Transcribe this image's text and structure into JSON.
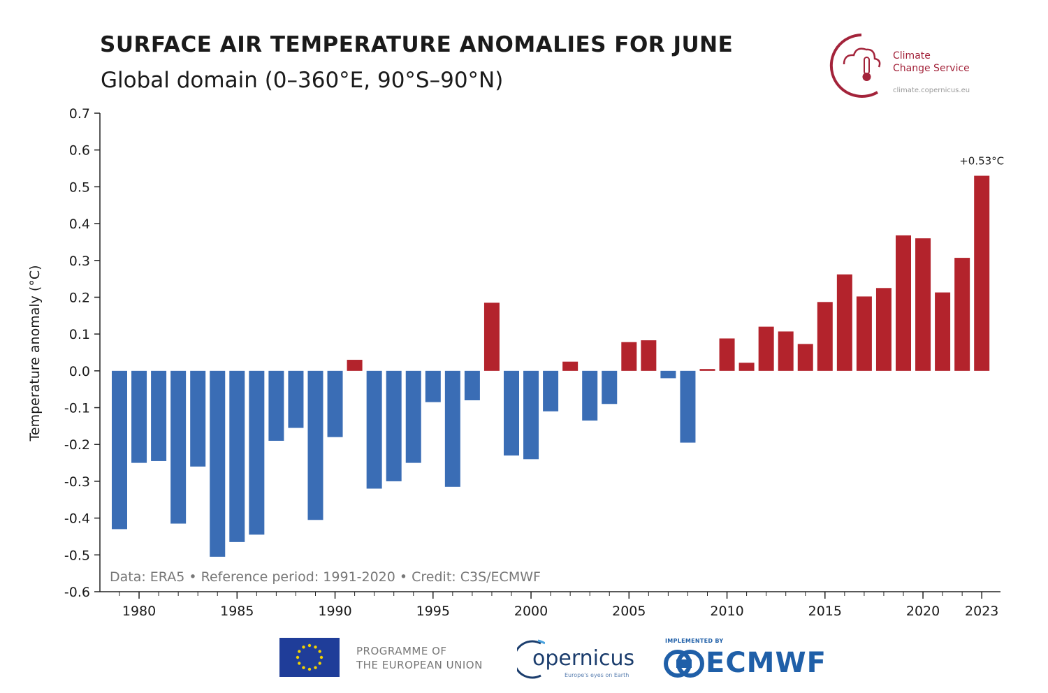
{
  "chart_data": {
    "type": "bar",
    "title": "SURFACE AIR TEMPERATURE ANOMALIES FOR JUNE",
    "subtitle": "Global domain (0–360°E, 90°S–90°N)",
    "ylabel": "Temperature anomaly (°C)",
    "xlabel": "",
    "ylim": [
      -0.6,
      0.7
    ],
    "yticks": [
      "0.7",
      "0.6",
      "0.5",
      "0.4",
      "0.3",
      "0.2",
      "0.1",
      "0.0",
      "-0.1",
      "-0.2",
      "-0.3",
      "-0.4",
      "-0.5",
      "-0.6"
    ],
    "xticks": [
      "1980",
      "1985",
      "1990",
      "1995",
      "2000",
      "2005",
      "2010",
      "2015",
      "2020",
      "2023"
    ],
    "x": [
      1979,
      1980,
      1981,
      1982,
      1983,
      1984,
      1985,
      1986,
      1987,
      1988,
      1989,
      1990,
      1991,
      1992,
      1993,
      1994,
      1995,
      1996,
      1997,
      1998,
      1999,
      2000,
      2001,
      2002,
      2003,
      2004,
      2005,
      2006,
      2007,
      2008,
      2009,
      2010,
      2011,
      2012,
      2013,
      2014,
      2015,
      2016,
      2017,
      2018,
      2019,
      2020,
      2021,
      2022,
      2023
    ],
    "values": [
      -0.43,
      -0.25,
      -0.245,
      -0.415,
      -0.26,
      -0.505,
      -0.465,
      -0.445,
      -0.19,
      -0.155,
      -0.405,
      -0.18,
      0.03,
      -0.32,
      -0.3,
      -0.25,
      -0.085,
      -0.315,
      -0.08,
      0.185,
      -0.23,
      -0.24,
      -0.11,
      0.025,
      -0.135,
      -0.09,
      0.078,
      0.083,
      -0.02,
      -0.195,
      0.005,
      0.088,
      0.022,
      0.12,
      0.107,
      0.073,
      0.187,
      0.262,
      0.202,
      0.225,
      0.368,
      0.36,
      0.213,
      0.307,
      0.53
    ],
    "positive_color": "#b3232c",
    "negative_color": "#3a6db5",
    "annotation": "+0.53°C",
    "credit": "Data: ERA5 • Reference period: 1991-2020 • Credit: C3S/ECMWF",
    "grid": false,
    "legend": "none"
  },
  "logos": {
    "c3s_line1": "Climate",
    "c3s_line2": "Change Service",
    "c3s_url": "climate.copernicus.eu",
    "c3s_icon": "cloud-thermometer-icon",
    "eu_text_1": "PROGRAMME OF",
    "eu_text_2": "THE EUROPEAN UNION",
    "eu_icon": "eu-flag-icon",
    "copernicus_name": "opernicus",
    "copernicus_tag": "Europe's eyes on Earth",
    "ecmwf_implemented": "IMPLEMENTED BY",
    "ecmwf_name": "ECMWF"
  }
}
